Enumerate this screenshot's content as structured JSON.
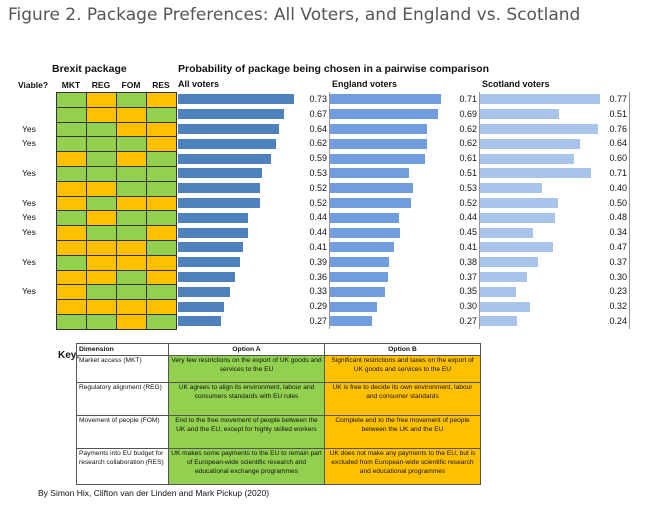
{
  "figure_title": "Figure 2. Package Preferences: All Voters, and England vs. Scotland",
  "headers": {
    "brexit_package": "Brexit package",
    "probability": "Probability of package being chosen in a pairwise comparison",
    "viable": "Viable?",
    "cols": [
      "MKT",
      "REG",
      "FOM",
      "RES"
    ],
    "panels": [
      "All voters",
      "England voters",
      "Scotland voters"
    ]
  },
  "colors": {
    "option_a": "#92d050",
    "option_b": "#ffc000",
    "all": "#4f81bd",
    "england": "#6f9ddd",
    "scotland": "#a9c4ea"
  },
  "viable": [
    "",
    "",
    "Yes",
    "Yes",
    "",
    "Yes",
    "",
    "Yes",
    "Yes",
    "Yes",
    "",
    "Yes",
    "",
    "Yes",
    "",
    ""
  ],
  "packages": [
    [
      "A",
      "B",
      "A",
      "B"
    ],
    [
      "A",
      "B",
      "B",
      "A"
    ],
    [
      "A",
      "A",
      "B",
      "B"
    ],
    [
      "A",
      "A",
      "A",
      "B"
    ],
    [
      "B",
      "A",
      "B",
      "A"
    ],
    [
      "A",
      "A",
      "A",
      "A"
    ],
    [
      "B",
      "B",
      "A",
      "A"
    ],
    [
      "B",
      "A",
      "B",
      "B"
    ],
    [
      "A",
      "B",
      "A",
      "A"
    ],
    [
      "B",
      "A",
      "A",
      "B"
    ],
    [
      "B",
      "B",
      "B",
      "A"
    ],
    [
      "A",
      "B",
      "B",
      "B"
    ],
    [
      "B",
      "B",
      "A",
      "B"
    ],
    [
      "B",
      "A",
      "A",
      "A"
    ],
    [
      "B",
      "B",
      "B",
      "B"
    ],
    [
      "A",
      "A",
      "B",
      "A"
    ]
  ],
  "chart_data": {
    "type": "bar",
    "title": "Probability of package being chosen in a pairwise comparison",
    "xlim": [
      0,
      1
    ],
    "series": [
      {
        "name": "All voters",
        "values": [
          0.73,
          0.67,
          0.64,
          0.62,
          0.59,
          0.53,
          0.52,
          0.52,
          0.44,
          0.44,
          0.41,
          0.39,
          0.36,
          0.33,
          0.29,
          0.27
        ]
      },
      {
        "name": "England voters",
        "values": [
          0.71,
          0.69,
          0.62,
          0.62,
          0.61,
          0.51,
          0.53,
          0.52,
          0.44,
          0.45,
          0.41,
          0.38,
          0.37,
          0.35,
          0.3,
          0.27
        ]
      },
      {
        "name": "Scotland voters",
        "values": [
          0.77,
          0.51,
          0.76,
          0.64,
          0.6,
          0.71,
          0.4,
          0.5,
          0.48,
          0.34,
          0.47,
          0.37,
          0.3,
          0.23,
          0.32,
          0.24
        ]
      }
    ]
  },
  "key": {
    "label": "Key:",
    "headers": [
      "Dimension",
      "Option A",
      "Option B"
    ],
    "rows": [
      [
        "Market access (MKT)",
        "Very few restrictions on the export of UK goods and services to the EU",
        "Significant restrictions and taxes on the export of UK goods and services to the EU"
      ],
      [
        "Regulatory alignment (REG)",
        "UK agrees to align its environment, labour and consumers standards with EU rules",
        "UK is free to decide its own environment, labour and consumer standards"
      ],
      [
        "Movement of people (FOM)",
        "End to the free movement of people between the UK and the EU, except for highly skilled workers",
        "Complete end to the free movement of people between the UK and the EU"
      ],
      [
        "Payments into EU budget for research collaboration (RES)",
        "UK makes some payments to the EU to remain part of European-wide scientific research and educational exchange programmes",
        "UK does not make any payments to the EU, but is excluded from European-wide scientific research and educational programmes"
      ]
    ]
  },
  "byline": "By Simon Hix, Clifton van der Linden and Mark Pickup (2020)"
}
